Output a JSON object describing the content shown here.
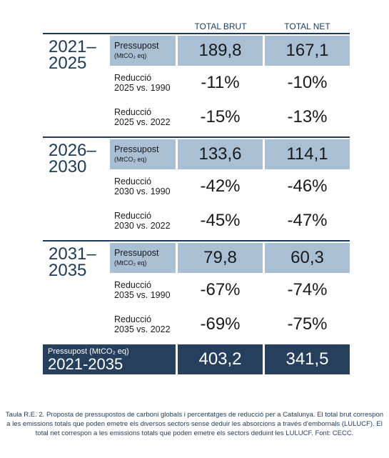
{
  "header": {
    "columns": [
      "TOTAL BRUT",
      "TOTAL NET"
    ]
  },
  "table": {
    "blocks": [
      {
        "period": [
          "2021–",
          "2025"
        ],
        "rows": [
          {
            "label": [
              "Pressupost",
              "(MtCO₂ eq)"
            ],
            "brut": "189,8",
            "net": "167,1"
          },
          {
            "label": [
              "Reducció",
              "2025 vs. 1990"
            ],
            "brut": "-11%",
            "net": "-10%"
          },
          {
            "label": [
              "Reducció",
              "2025 vs. 2022"
            ],
            "brut": "-15%",
            "net": "-13%"
          }
        ]
      },
      {
        "period": [
          "2026–",
          "2030"
        ],
        "rows": [
          {
            "label": [
              "Pressupost",
              "(MtCO₂ eq)"
            ],
            "brut": "133,6",
            "net": "114,1"
          },
          {
            "label": [
              "Reducció",
              "2030 vs. 1990"
            ],
            "brut": "-42%",
            "net": "-46%"
          },
          {
            "label": [
              "Reducció",
              "2030 vs. 2022"
            ],
            "brut": "-45%",
            "net": "-47%"
          }
        ]
      },
      {
        "period": [
          "2031–",
          "2035"
        ],
        "rows": [
          {
            "label": [
              "Pressupost",
              "(MtCO₂ eq)"
            ],
            "brut": "79,8",
            "net": "60,3"
          },
          {
            "label": [
              "Reducció",
              "2035 vs. 1990"
            ],
            "brut": "-67%",
            "net": "-74%"
          },
          {
            "label": [
              "Reducció",
              "2035 vs. 2022"
            ],
            "brut": "-69%",
            "net": "-75%"
          }
        ]
      }
    ],
    "total": {
      "label": "Pressupost (MtCO₂ eq)",
      "period": "2021-2035",
      "brut": "403,2",
      "net": "341,5"
    }
  },
  "caption": "Taula R.E. 2. Proposta de pressupostos de carboni globals i percentatges de reducció per a Catalunya. El total brut correspon a les emissions totals que poden emetre els diversos sectors sense deduir les absorcions a través d'embornals (LULUCF). El total net correspon a les emissions totals que poden emetre els sectors deduint les LULUCF. Font: CECC."
}
